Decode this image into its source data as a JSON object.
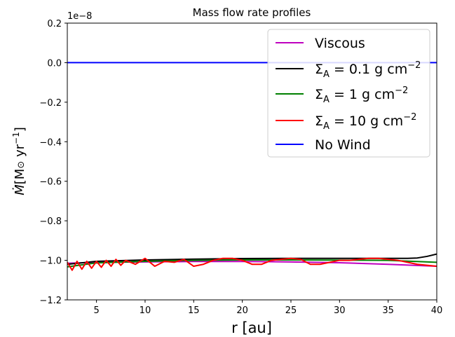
{
  "chart_data": {
    "type": "line",
    "title": "Mass flow rate profiles",
    "xlabel": "r [au]",
    "ylabel": "Ṁ[M⊙ yr⁻¹]",
    "y_offset_label": "1e−8",
    "xlim": [
      2,
      40
    ],
    "ylim": [
      -1.2,
      0.2
    ],
    "x_ticks": [
      5,
      10,
      15,
      20,
      25,
      30,
      35,
      40
    ],
    "x_tick_labels": [
      "5",
      "10",
      "15",
      "20",
      "25",
      "30",
      "35",
      "40"
    ],
    "y_ticks": [
      0.2,
      0.0,
      -0.2,
      -0.4,
      -0.6,
      -0.8,
      -1.0,
      -1.2
    ],
    "y_tick_labels": [
      "0.2",
      "0.0",
      "−0.2",
      "−0.4",
      "−0.6",
      "−0.8",
      "−1.0",
      "−1.2"
    ],
    "grid": false,
    "legend_position": "top-right",
    "y_units_scale": "1e-8",
    "series": [
      {
        "name": "Viscous",
        "color": "#bf00bf",
        "x": [
          2,
          5,
          10,
          15,
          20,
          25,
          30,
          35,
          40
        ],
        "y": [
          -1.015,
          -1.01,
          -1.008,
          -1.006,
          -1.006,
          -1.008,
          -1.012,
          -1.02,
          -1.03
        ]
      },
      {
        "name": "Σ_A = 0.1 g cm^-2",
        "color": "#000000",
        "x": [
          2,
          5,
          10,
          15,
          20,
          25,
          30,
          35,
          37,
          38,
          39,
          40
        ],
        "y": [
          -1.02,
          -1.005,
          -0.998,
          -0.994,
          -0.991,
          -0.99,
          -0.99,
          -0.99,
          -0.99,
          -0.988,
          -0.98,
          -0.968
        ]
      },
      {
        "name": "Σ_A = 1 g cm^-2",
        "color": "#008000",
        "x": [
          2,
          5,
          10,
          15,
          20,
          25,
          30,
          35,
          40
        ],
        "y": [
          -1.033,
          -1.013,
          -1.005,
          -1.0,
          -0.998,
          -0.998,
          -0.999,
          -1.0,
          -1.01
        ]
      },
      {
        "name": "Σ_A = 10 g cm^-2",
        "color": "#ff0000",
        "x": [
          2.0,
          2.5,
          3.0,
          3.5,
          4.0,
          4.5,
          5.0,
          5.5,
          6.0,
          6.5,
          7.0,
          7.5,
          8.0,
          9.0,
          10.0,
          11.0,
          12.0,
          13.0,
          14.0,
          15.0,
          16.0,
          17.0,
          18.0,
          19.0,
          20.0,
          21.0,
          22.0,
          23.0,
          24.0,
          25.0,
          26.0,
          27.0,
          28.0,
          29.0,
          30.0,
          31.0,
          32.0,
          33.0,
          34.0,
          35.0,
          36.0,
          37.0,
          38.0,
          39.0,
          40.0
        ],
        "y": [
          -1.01,
          -1.05,
          -1.005,
          -1.045,
          -1.005,
          -1.04,
          -1.005,
          -1.035,
          -1.0,
          -1.03,
          -0.995,
          -1.025,
          -1.0,
          -1.02,
          -0.99,
          -1.03,
          -1.005,
          -1.01,
          -0.995,
          -1.03,
          -1.02,
          -1.0,
          -0.99,
          -0.99,
          -1.0,
          -1.02,
          -1.02,
          -1.0,
          -0.995,
          -0.99,
          -0.995,
          -1.02,
          -1.02,
          -1.01,
          -1.0,
          -1.0,
          -0.995,
          -0.99,
          -0.99,
          -0.995,
          -1.0,
          -1.01,
          -1.02,
          -1.025,
          -1.03
        ]
      },
      {
        "name": "No Wind",
        "color": "#0000ff",
        "x": [
          2,
          40
        ],
        "y": [
          0.0,
          0.0
        ]
      }
    ]
  }
}
